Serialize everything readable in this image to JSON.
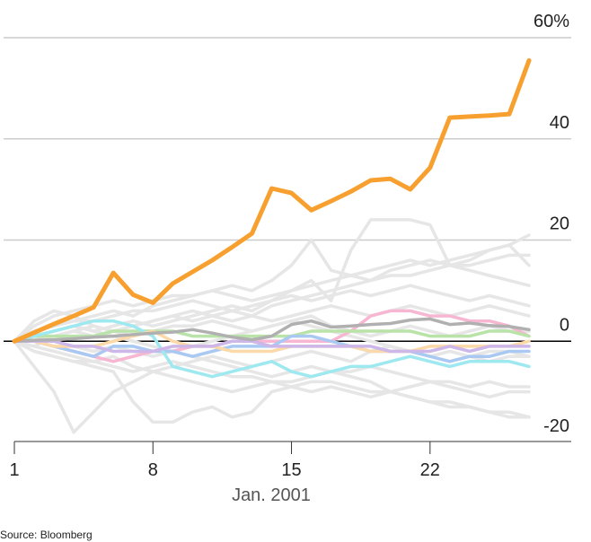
{
  "chart_data": {
    "type": "line",
    "x_label": "Jan. 2001",
    "source": "Source: Bloomberg",
    "x": [
      1,
      2,
      3,
      4,
      5,
      6,
      7,
      8,
      9,
      10,
      11,
      12,
      13,
      14,
      15,
      16,
      17,
      18,
      19,
      20,
      21,
      22,
      23,
      24,
      25,
      26,
      27
    ],
    "xlim": [
      1,
      27
    ],
    "xticks": [
      1,
      8,
      15,
      22
    ],
    "ylim": [
      -20,
      60
    ],
    "yticks": [
      {
        "value": 60,
        "label": "60%"
      },
      40,
      20,
      0,
      -20
    ],
    "grid": true,
    "series": [
      {
        "color": "#e6e6e6",
        "values": [
          0,
          1,
          2,
          3,
          2,
          3,
          4,
          3,
          4,
          5,
          6,
          7,
          6,
          8,
          10,
          12,
          8,
          18,
          24,
          24,
          24,
          23,
          15,
          15,
          16,
          17,
          17
        ]
      },
      {
        "color": "#e6e6e6",
        "values": [
          0,
          -1,
          1,
          2,
          1,
          2,
          3,
          4,
          5,
          4,
          5,
          6,
          5,
          7,
          8,
          9,
          10,
          11,
          12,
          13,
          13,
          14,
          15,
          16,
          18,
          19,
          21
        ]
      },
      {
        "color": "#e6e6e6",
        "values": [
          0,
          -5,
          -10,
          -18,
          -14,
          -10,
          -8,
          -6,
          -5,
          -4,
          -3,
          -4,
          -5,
          -4,
          -3,
          -2,
          -3,
          -4,
          -2,
          -1,
          -2,
          -3,
          -4,
          -3,
          -2,
          -2,
          -3
        ]
      },
      {
        "color": "#e6e6e6",
        "values": [
          0,
          -2,
          -3,
          -4,
          -5,
          -6,
          -12,
          -16,
          -16,
          -14,
          -13,
          -15,
          -14,
          -10,
          -9,
          -8,
          -8,
          -9,
          -10,
          -10,
          -11,
          -12,
          -13,
          -13,
          -14,
          -15,
          -15
        ]
      },
      {
        "color": "#e6e6e6",
        "values": [
          0,
          1,
          2,
          3,
          2,
          1,
          0,
          -1,
          -2,
          -3,
          -4,
          -5,
          -6,
          -7,
          -6,
          -5,
          -6,
          -7,
          -8,
          -10,
          -11,
          -12,
          -12,
          -13,
          -14,
          -14,
          -15
        ]
      },
      {
        "color": "#e6e6e6",
        "values": [
          0,
          2,
          3,
          4,
          5,
          6,
          5,
          7,
          8,
          9,
          10,
          11,
          10,
          12,
          15,
          20,
          14,
          13,
          12,
          14,
          15,
          16,
          15,
          14,
          13,
          12,
          11
        ]
      },
      {
        "color": "#e6e6e6",
        "values": [
          0,
          3,
          5,
          6,
          7,
          8,
          7,
          8,
          9,
          9,
          10,
          9,
          8,
          9,
          10,
          11,
          12,
          13,
          14,
          15,
          16,
          15,
          16,
          17,
          18,
          19,
          15
        ]
      },
      {
        "color": "#e6e6e6",
        "values": [
          0,
          2,
          3,
          4,
          4,
          5,
          6,
          6,
          7,
          8,
          7,
          6,
          7,
          8,
          9,
          8,
          9,
          10,
          9,
          10,
          11,
          10,
          9,
          8,
          9,
          8,
          7
        ]
      },
      {
        "color": "#e6e6e6",
        "values": [
          0,
          -2,
          -3,
          -4,
          -4,
          -5,
          -6,
          -5,
          -4,
          -5,
          -6,
          -7,
          -7,
          -8,
          -9,
          -10,
          -9,
          -10,
          -11,
          -10,
          -9,
          -8,
          -9,
          -10,
          -11,
          -10,
          -10
        ]
      },
      {
        "color": "#e6e6e6",
        "values": [
          0,
          1,
          1,
          2,
          3,
          2,
          3,
          4,
          5,
          6,
          5,
          4,
          5,
          4,
          5,
          6,
          7,
          6,
          5,
          6,
          7,
          6,
          5,
          6,
          7,
          6,
          5
        ]
      },
      {
        "color": "#e6e6e6",
        "values": [
          0,
          -1,
          -2,
          -3,
          -4,
          -3,
          -5,
          -6,
          -7,
          -8,
          -9,
          -10,
          -9,
          -8,
          -8,
          -7,
          -6,
          -6,
          -5,
          -6,
          -7,
          -8,
          -8,
          -9,
          -8,
          -9,
          -9
        ]
      },
      {
        "color": "#e6e6e6",
        "values": [
          0,
          4,
          6,
          5,
          3,
          2,
          1,
          2,
          3,
          3,
          4,
          3,
          2,
          3,
          4,
          3,
          2,
          1,
          0,
          -1,
          -2,
          -3,
          -2,
          -3,
          -4,
          -3,
          -3
        ]
      },
      {
        "color": "#e6e6e6",
        "values": [
          0,
          1,
          0,
          -1,
          -2,
          -1,
          -2,
          -3,
          -2,
          -1,
          0,
          1,
          2,
          3,
          4,
          5,
          3,
          2,
          1,
          2,
          3,
          2,
          1,
          2,
          3,
          2,
          2
        ]
      },
      {
        "color": "#f7b6d2",
        "values": [
          0,
          0,
          -1,
          -2,
          -3,
          -4,
          -3,
          -2,
          -2,
          -1,
          -1,
          0,
          0,
          0,
          0,
          0,
          0,
          2,
          5,
          6,
          6,
          5,
          5,
          4,
          4,
          3,
          1
        ]
      },
      {
        "color": "#b9e3a8",
        "values": [
          0,
          1,
          1,
          1,
          1,
          2,
          2,
          2,
          2,
          1,
          1,
          1,
          1,
          1,
          1,
          2,
          2,
          2,
          2,
          2,
          2,
          1,
          1,
          1,
          2,
          2,
          1
        ]
      },
      {
        "color": "#a9c9f2",
        "values": [
          0,
          0,
          -1,
          -2,
          -3,
          -1,
          -1,
          -2,
          -2,
          -3,
          -2,
          -1,
          -1,
          -1,
          1,
          1,
          0,
          -1,
          -2,
          -2,
          -2,
          -3,
          -4,
          -3,
          -3,
          -2,
          -2
        ]
      },
      {
        "color": "#9ee8f0",
        "values": [
          0,
          1,
          2,
          3,
          4,
          4,
          3,
          1,
          -5,
          -6,
          -7,
          -6,
          -5,
          -4,
          -6,
          -7,
          -6,
          -5,
          -5,
          -4,
          -3,
          -4,
          -5,
          -4,
          -4,
          -4,
          -5
        ]
      },
      {
        "color": "#fbd9a8",
        "values": [
          0,
          0,
          -1,
          -1,
          -1,
          0,
          1,
          2,
          0,
          -1,
          -1,
          -2,
          -2,
          -2,
          -1,
          -1,
          -1,
          -1,
          -2,
          -2,
          -2,
          -1,
          -1,
          -1,
          -1,
          -1,
          0
        ]
      },
      {
        "color": "#cdb6e8",
        "values": [
          0,
          0,
          0,
          -1,
          -1,
          -2,
          -2,
          -2,
          -1,
          -1,
          -1,
          0,
          0,
          -1,
          -1,
          -1,
          -1,
          -1,
          -1,
          -2,
          -2,
          -2,
          -1,
          -2,
          -1,
          -1,
          -1
        ]
      },
      {
        "color": "#b0b0b0",
        "values": [
          0,
          0.2,
          0.3,
          0.5,
          0.8,
          1,
          1.3,
          1.6,
          1.8,
          2.3,
          1.6,
          0.8,
          0.3,
          1,
          3.3,
          4,
          2.8,
          3,
          3.3,
          3.5,
          4.2,
          4.4,
          3.3,
          3.6,
          3.1,
          2.9,
          2.3
        ]
      },
      {
        "color": "#f7a030",
        "values": [
          0,
          1.7,
          3.4,
          5,
          6.7,
          13.5,
          9.2,
          7.6,
          11.4,
          13.7,
          16,
          18.6,
          21.3,
          30.2,
          29.3,
          25.9,
          27.7,
          29.6,
          31.8,
          32.1,
          30,
          34.3,
          44.2,
          44.4,
          44.6,
          44.9,
          55.5
        ]
      }
    ]
  }
}
